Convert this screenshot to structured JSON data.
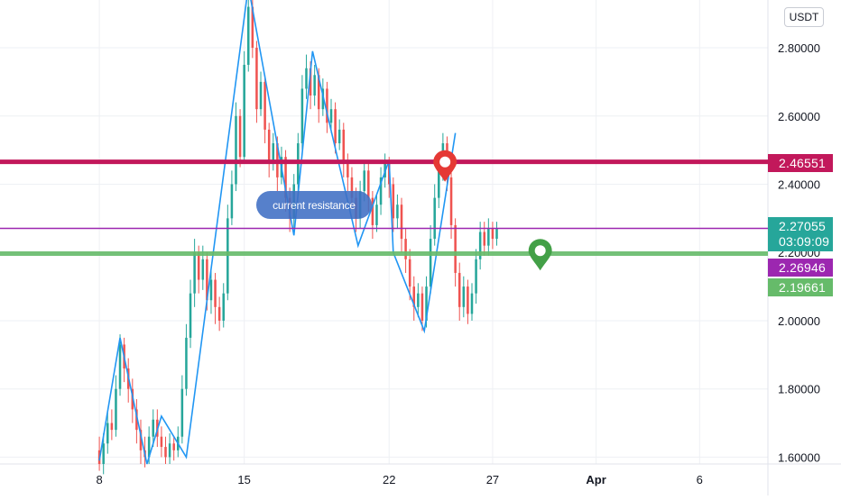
{
  "unit_label": "USDT",
  "annotation": "current resistance",
  "colors": {
    "bull": "#26a69a",
    "bear": "#ef5350",
    "zigzag": "#2196f3",
    "resistance": "#c2185b",
    "current": "#9c27b0",
    "support": "#66bb6a",
    "red_marker": "#e53935",
    "green_marker": "#43a047"
  },
  "price_tags": {
    "resistance": "2.46551",
    "last_price": "2.27055",
    "countdown": "03:09:09",
    "current_level": "2.26946",
    "support": "2.19661"
  },
  "chart_data": {
    "type": "candlestick",
    "y_ticks": [
      "2.80000",
      "2.60000",
      "2.40000",
      "2.20000",
      "2.00000",
      "1.80000",
      "1.60000"
    ],
    "y_tick_values": [
      2.8,
      2.6,
      2.4,
      2.2,
      2.0,
      1.8,
      1.6
    ],
    "ylim": [
      1.58,
      2.94
    ],
    "x_ticks": [
      "8",
      "15",
      "22",
      "27",
      "Apr",
      "6"
    ],
    "x_tick_days": [
      8,
      15,
      22,
      27,
      32,
      37
    ],
    "xlim_days": [
      3.2,
      40.3
    ],
    "horizontal_levels": [
      {
        "id": "resistance",
        "value": 2.46551
      },
      {
        "id": "current",
        "value": 2.27055
      },
      {
        "id": "support",
        "value": 2.19661
      }
    ],
    "zigzag": [
      [
        8.0,
        1.59
      ],
      [
        9.0,
        1.95
      ],
      [
        10.3,
        1.58
      ],
      [
        11.0,
        1.72
      ],
      [
        12.2,
        1.6
      ],
      [
        15.2,
        2.98
      ],
      [
        17.4,
        2.25
      ],
      [
        18.3,
        2.79
      ],
      [
        20.5,
        2.22
      ],
      [
        22.0,
        2.47
      ],
      [
        22.2,
        2.2
      ],
      [
        23.7,
        1.97
      ],
      [
        25.2,
        2.55
      ]
    ],
    "markers": [
      {
        "id": "red",
        "day": 24.7,
        "value": 2.46
      },
      {
        "id": "green",
        "day": 29.3,
        "value": 2.2
      }
    ],
    "candles": [
      [
        8.0,
        1.62,
        1.58,
        1.66,
        1.56
      ],
      [
        8.2,
        1.58,
        1.64,
        1.67,
        1.55
      ],
      [
        8.4,
        1.64,
        1.7,
        1.73,
        1.61
      ],
      [
        8.6,
        1.7,
        1.68,
        1.74,
        1.65
      ],
      [
        8.8,
        1.68,
        1.8,
        1.84,
        1.66
      ],
      [
        9.0,
        1.8,
        1.93,
        1.96,
        1.78
      ],
      [
        9.2,
        1.93,
        1.86,
        1.95,
        1.82
      ],
      [
        9.4,
        1.86,
        1.8,
        1.89,
        1.76
      ],
      [
        9.6,
        1.8,
        1.74,
        1.83,
        1.7
      ],
      [
        9.8,
        1.74,
        1.68,
        1.77,
        1.64
      ],
      [
        10.0,
        1.68,
        1.62,
        1.71,
        1.58
      ],
      [
        10.2,
        1.62,
        1.6,
        1.66,
        1.57
      ],
      [
        10.4,
        1.6,
        1.66,
        1.69,
        1.58
      ],
      [
        10.6,
        1.66,
        1.71,
        1.74,
        1.63
      ],
      [
        10.8,
        1.71,
        1.66,
        1.74,
        1.63
      ],
      [
        11.0,
        1.66,
        1.63,
        1.69,
        1.6
      ],
      [
        11.2,
        1.63,
        1.6,
        1.66,
        1.58
      ],
      [
        11.4,
        1.6,
        1.64,
        1.67,
        1.58
      ],
      [
        11.6,
        1.64,
        1.62,
        1.66,
        1.59
      ],
      [
        11.8,
        1.62,
        1.66,
        1.69,
        1.6
      ],
      [
        12.0,
        1.66,
        1.8,
        1.84,
        1.64
      ],
      [
        12.2,
        1.8,
        1.95,
        1.99,
        1.78
      ],
      [
        12.4,
        1.95,
        2.08,
        2.12,
        1.92
      ],
      [
        12.6,
        2.08,
        2.2,
        2.24,
        2.04
      ],
      [
        12.8,
        2.2,
        2.12,
        2.22,
        2.08
      ],
      [
        13.0,
        2.12,
        2.18,
        2.22,
        2.09
      ],
      [
        13.2,
        2.18,
        2.06,
        2.2,
        2.03
      ],
      [
        13.4,
        2.06,
        2.12,
        2.15,
        2.02
      ],
      [
        13.6,
        2.12,
        2.04,
        2.14,
        1.99
      ],
      [
        13.8,
        2.04,
        2.0,
        2.07,
        1.97
      ],
      [
        14.0,
        2.0,
        2.08,
        2.11,
        1.98
      ],
      [
        14.2,
        2.08,
        2.3,
        2.34,
        2.06
      ],
      [
        14.4,
        2.3,
        2.4,
        2.44,
        2.28
      ],
      [
        14.6,
        2.4,
        2.6,
        2.64,
        2.38
      ],
      [
        14.8,
        2.6,
        2.48,
        2.62,
        2.45
      ],
      [
        15.0,
        2.48,
        2.75,
        2.79,
        2.46
      ],
      [
        15.2,
        2.75,
        2.92,
        2.96,
        2.73
      ],
      [
        15.4,
        2.92,
        2.8,
        2.94,
        2.77
      ],
      [
        15.6,
        2.8,
        2.62,
        2.82,
        2.58
      ],
      [
        15.8,
        2.62,
        2.7,
        2.73,
        2.6
      ],
      [
        16.0,
        2.7,
        2.56,
        2.72,
        2.52
      ],
      [
        16.2,
        2.56,
        2.46,
        2.58,
        2.42
      ],
      [
        16.4,
        2.46,
        2.52,
        2.55,
        2.44
      ],
      [
        16.6,
        2.52,
        2.42,
        2.54,
        2.38
      ],
      [
        16.8,
        2.42,
        2.48,
        2.51,
        2.4
      ],
      [
        17.0,
        2.48,
        2.36,
        2.5,
        2.32
      ],
      [
        17.2,
        2.36,
        2.3,
        2.39,
        2.26
      ],
      [
        17.4,
        2.3,
        2.4,
        2.43,
        2.27
      ],
      [
        17.6,
        2.4,
        2.52,
        2.55,
        2.38
      ],
      [
        17.8,
        2.52,
        2.68,
        2.72,
        2.5
      ],
      [
        18.0,
        2.68,
        2.74,
        2.78,
        2.65
      ],
      [
        18.2,
        2.74,
        2.66,
        2.76,
        2.62
      ],
      [
        18.4,
        2.66,
        2.72,
        2.75,
        2.63
      ],
      [
        18.6,
        2.72,
        2.62,
        2.74,
        2.58
      ],
      [
        18.8,
        2.62,
        2.68,
        2.71,
        2.6
      ],
      [
        19.0,
        2.68,
        2.58,
        2.7,
        2.55
      ],
      [
        19.2,
        2.58,
        2.62,
        2.65,
        2.55
      ],
      [
        19.4,
        2.62,
        2.52,
        2.64,
        2.49
      ],
      [
        19.6,
        2.52,
        2.56,
        2.59,
        2.5
      ],
      [
        19.8,
        2.56,
        2.46,
        2.58,
        2.42
      ],
      [
        20.0,
        2.46,
        2.42,
        2.49,
        2.38
      ],
      [
        20.2,
        2.42,
        2.36,
        2.45,
        2.33
      ],
      [
        20.4,
        2.36,
        2.3,
        2.39,
        2.26
      ],
      [
        20.6,
        2.3,
        2.38,
        2.41,
        2.27
      ],
      [
        20.8,
        2.38,
        2.44,
        2.47,
        2.35
      ],
      [
        21.0,
        2.44,
        2.36,
        2.46,
        2.32
      ],
      [
        21.2,
        2.36,
        2.28,
        2.38,
        2.24
      ],
      [
        21.4,
        2.28,
        2.34,
        2.37,
        2.26
      ],
      [
        21.6,
        2.34,
        2.42,
        2.45,
        2.31
      ],
      [
        21.8,
        2.42,
        2.46,
        2.49,
        2.39
      ],
      [
        22.0,
        2.46,
        2.4,
        2.48,
        2.36
      ],
      [
        22.2,
        2.4,
        2.3,
        2.42,
        2.26
      ],
      [
        22.4,
        2.3,
        2.34,
        2.37,
        2.27
      ],
      [
        22.6,
        2.34,
        2.24,
        2.36,
        2.2
      ],
      [
        22.8,
        2.24,
        2.18,
        2.27,
        2.14
      ],
      [
        23.0,
        2.18,
        2.1,
        2.21,
        2.06
      ],
      [
        23.2,
        2.1,
        2.04,
        2.13,
        2.0
      ],
      [
        23.4,
        2.04,
        2.08,
        2.11,
        2.01
      ],
      [
        23.6,
        2.08,
        2.0,
        2.1,
        1.97
      ],
      [
        23.8,
        2.0,
        2.1,
        2.13,
        1.98
      ],
      [
        24.0,
        2.1,
        2.24,
        2.28,
        2.08
      ],
      [
        24.2,
        2.24,
        2.36,
        2.4,
        2.22
      ],
      [
        24.4,
        2.36,
        2.44,
        2.48,
        2.33
      ],
      [
        24.6,
        2.44,
        2.52,
        2.55,
        2.41
      ],
      [
        24.8,
        2.52,
        2.42,
        2.54,
        2.38
      ],
      [
        25.0,
        2.42,
        2.28,
        2.44,
        2.24
      ],
      [
        25.2,
        2.28,
        2.14,
        2.3,
        2.1
      ],
      [
        25.4,
        2.14,
        2.04,
        2.17,
        2.0
      ],
      [
        25.6,
        2.04,
        2.1,
        2.13,
        2.01
      ],
      [
        25.8,
        2.1,
        2.02,
        2.12,
        1.99
      ],
      [
        26.0,
        2.02,
        2.08,
        2.11,
        2.0
      ],
      [
        26.2,
        2.08,
        2.18,
        2.21,
        2.05
      ],
      [
        26.4,
        2.18,
        2.26,
        2.29,
        2.15
      ],
      [
        26.6,
        2.26,
        2.22,
        2.29,
        2.19
      ],
      [
        26.8,
        2.22,
        2.27,
        2.3,
        2.19
      ],
      [
        27.0,
        2.27,
        2.24,
        2.29,
        2.21
      ],
      [
        27.2,
        2.24,
        2.27,
        2.29,
        2.22
      ]
    ]
  }
}
